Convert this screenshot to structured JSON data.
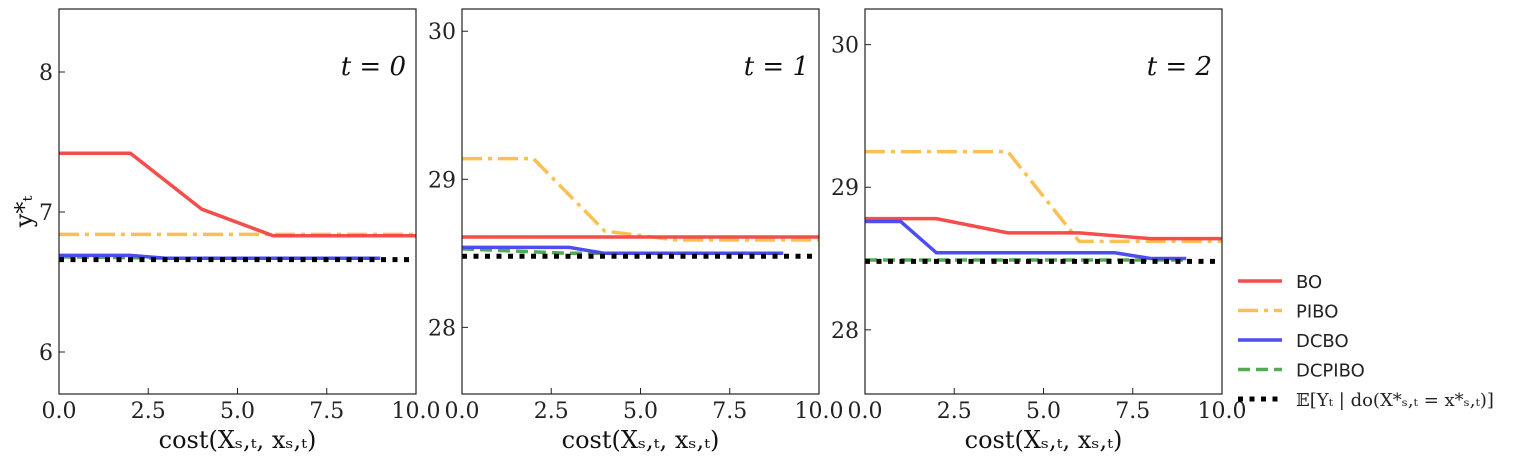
{
  "chart_data": [
    {
      "type": "line",
      "panel_label": "t = 0",
      "xlabel": "cost(X_{s,t}, x_{s,t})",
      "ylabel": "y_t^*",
      "xlim": [
        0,
        10
      ],
      "ylim": [
        5.7,
        8.45
      ],
      "x_ticks": [
        "0.0",
        "2.5",
        "5.0",
        "7.5",
        "10.0"
      ],
      "y_ticks": [
        {
          "value": 6,
          "label": "6"
        },
        {
          "value": 7,
          "label": "7"
        },
        {
          "value": 8,
          "label": "8"
        }
      ],
      "series": [
        {
          "name": "BO",
          "x": [
            0,
            2,
            4,
            6,
            10
          ],
          "y": [
            7.42,
            7.42,
            7.02,
            6.83,
            6.83
          ]
        },
        {
          "name": "PIBO",
          "x": [
            0,
            10
          ],
          "y": [
            6.84,
            6.84
          ]
        },
        {
          "name": "DCBO",
          "x": [
            0,
            2,
            3,
            9
          ],
          "y": [
            6.69,
            6.69,
            6.67,
            6.67
          ]
        },
        {
          "name": "DCPIBO",
          "x": [
            0,
            3,
            9
          ],
          "y": [
            6.68,
            6.67,
            6.67
          ]
        },
        {
          "name": "E[Y_t | do(X*_{s,t} = x*_{s,t})]",
          "x": [
            0,
            10
          ],
          "y": [
            6.66,
            6.66
          ]
        }
      ]
    },
    {
      "type": "line",
      "panel_label": "t = 1",
      "xlabel": "cost(X_{s,t}, x_{s,t})",
      "xlim": [
        0,
        10
      ],
      "ylim": [
        27.55,
        30.15
      ],
      "x_ticks": [
        "0.0",
        "2.5",
        "5.0",
        "7.5",
        "10.0"
      ],
      "y_ticks": [
        {
          "value": 28,
          "label": "28"
        },
        {
          "value": 29,
          "label": "29"
        },
        {
          "value": 30,
          "label": "30"
        }
      ],
      "series": [
        {
          "name": "BO",
          "x": [
            0,
            10
          ],
          "y": [
            28.61,
            28.61
          ]
        },
        {
          "name": "PIBO",
          "x": [
            0,
            2,
            4,
            6,
            10
          ],
          "y": [
            29.14,
            29.14,
            28.65,
            28.59,
            28.59
          ]
        },
        {
          "name": "DCBO",
          "x": [
            0,
            3,
            4,
            9
          ],
          "y": [
            28.54,
            28.54,
            28.5,
            28.5
          ]
        },
        {
          "name": "DCPIBO",
          "x": [
            0,
            3,
            9
          ],
          "y": [
            28.53,
            28.5,
            28.5
          ]
        },
        {
          "name": "E[Y_t | do(X*_{s,t} = x*_{s,t})]",
          "x": [
            0,
            10
          ],
          "y": [
            28.48,
            28.48
          ]
        }
      ]
    },
    {
      "type": "line",
      "panel_label": "t = 2",
      "xlabel": "cost(X_{s,t}, x_{s,t})",
      "xlim": [
        0,
        10
      ],
      "ylim": [
        27.55,
        30.25
      ],
      "x_ticks": [
        "0.0",
        "2.5",
        "5.0",
        "7.5",
        "10.0"
      ],
      "y_ticks": [
        {
          "value": 28,
          "label": "28"
        },
        {
          "value": 29,
          "label": "29"
        },
        {
          "value": 30,
          "label": "30"
        }
      ],
      "series": [
        {
          "name": "BO",
          "x": [
            0,
            2,
            4,
            6,
            8,
            10
          ],
          "y": [
            28.78,
            28.78,
            28.68,
            28.68,
            28.64,
            28.64
          ]
        },
        {
          "name": "PIBO",
          "x": [
            0,
            4,
            6,
            10
          ],
          "y": [
            29.25,
            29.25,
            28.62,
            28.62
          ]
        },
        {
          "name": "DCBO",
          "x": [
            0,
            1,
            2,
            7,
            8,
            9
          ],
          "y": [
            28.76,
            28.76,
            28.54,
            28.54,
            28.5,
            28.5
          ]
        },
        {
          "name": "DCPIBO",
          "x": [
            0,
            9
          ],
          "y": [
            28.49,
            28.49
          ]
        },
        {
          "name": "E[Y_t | do(X*_{s,t} = x*_{s,t})]",
          "x": [
            0,
            10
          ],
          "y": [
            28.48,
            28.48
          ]
        }
      ]
    }
  ],
  "styles": {
    "BO": {
      "color": "#f44242",
      "dash": "solid"
    },
    "PIBO": {
      "color": "#fbbd4b",
      "dash": "dashdot"
    },
    "DCBO": {
      "color": "#4444ee",
      "dash": "solid"
    },
    "DCPIBO": {
      "color": "#4aa64a",
      "dash": "dashed"
    },
    "Ytrue": {
      "color": "#000000",
      "dash": "dotted"
    }
  },
  "legend": [
    {
      "key": "BO",
      "label": "BO"
    },
    {
      "key": "PIBO",
      "label": "PIBO"
    },
    {
      "key": "DCBO",
      "label": "DCBO"
    },
    {
      "key": "DCPIBO",
      "label": "DCPIBO"
    },
    {
      "key": "Ytrue",
      "label": "𝔼[Yₜ | do(X*ₛ,ₜ = x*ₛ,ₜ)]"
    }
  ],
  "xlabel_display": "cost(Xₛ,ₜ, xₛ,ₜ)",
  "ylabel_display": "y*ₜ"
}
